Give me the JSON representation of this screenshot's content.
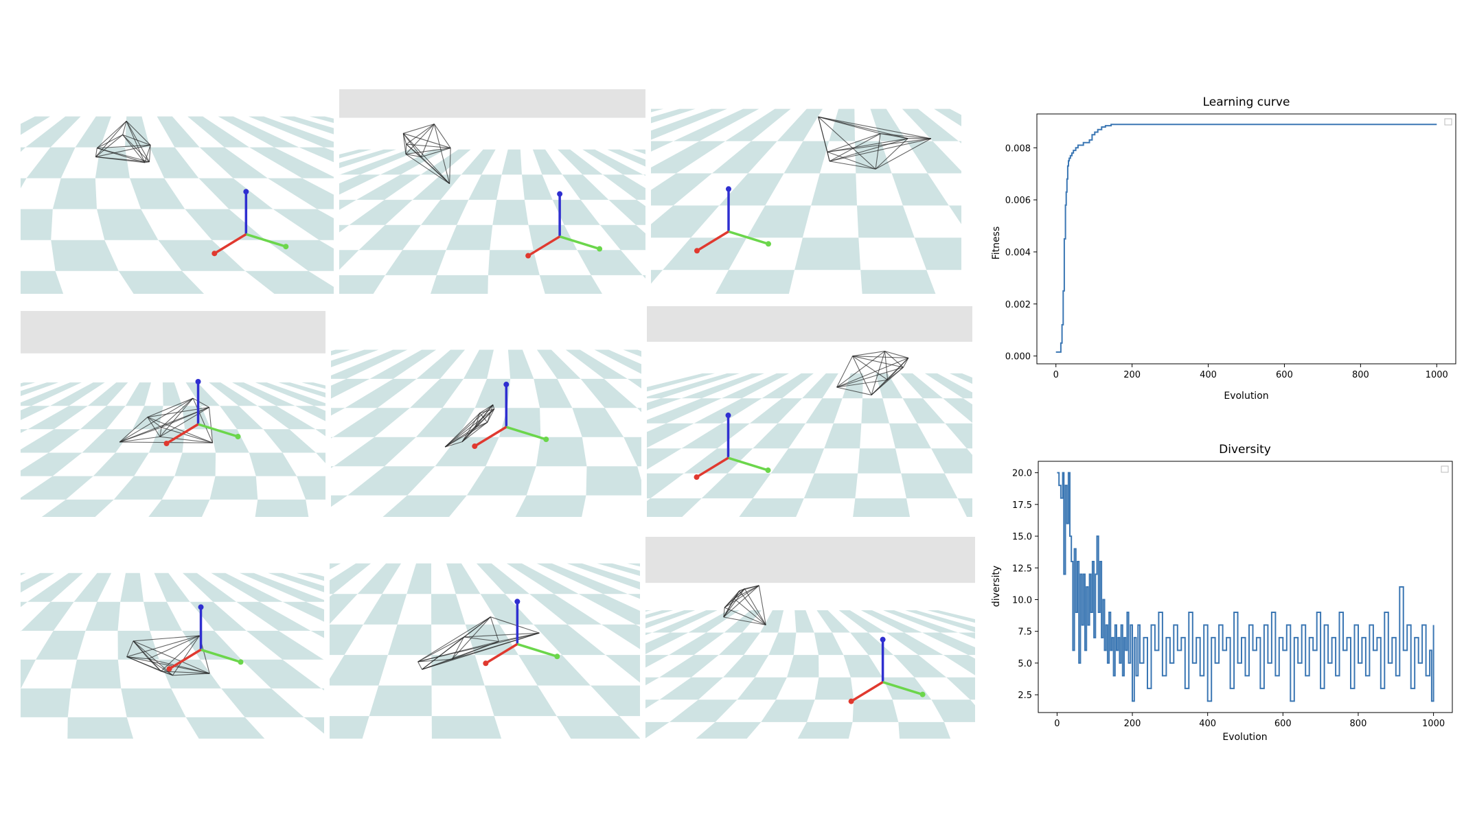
{
  "colors": {
    "tile": "#cfe3e3",
    "sky": "#e3e3e3",
    "x_axis": "#e0392f",
    "y_axis": "#6bd64b",
    "z_axis": "#2f2fd0",
    "edge": "#222222",
    "line": "#3a76b3"
  },
  "scenes": [
    {
      "id": "scene-1",
      "sky": false,
      "robot": "left"
    },
    {
      "id": "scene-2",
      "sky": true,
      "robot": "left"
    },
    {
      "id": "scene-3",
      "sky": false,
      "robot": "right"
    },
    {
      "id": "scene-4",
      "sky": true,
      "robot": "center"
    },
    {
      "id": "scene-5",
      "sky": false,
      "robot": "center"
    },
    {
      "id": "scene-6",
      "sky": true,
      "robot": "right"
    },
    {
      "id": "scene-7",
      "sky": false,
      "robot": "center"
    },
    {
      "id": "scene-8",
      "sky": false,
      "robot": "center"
    },
    {
      "id": "scene-9",
      "sky": true,
      "robot": "left"
    }
  ],
  "chart_data": [
    {
      "type": "line",
      "title": "Learning curve",
      "xlabel": "Evolution",
      "ylabel": "Fitness",
      "xlim": [
        -50,
        1050
      ],
      "ylim": [
        -0.0003,
        0.0093
      ],
      "xticks": [
        0,
        200,
        400,
        600,
        800,
        1000
      ],
      "yticks": [
        0.0,
        0.002,
        0.004,
        0.006,
        0.008
      ],
      "ytick_labels": [
        "0.000",
        "0.002",
        "0.004",
        "0.006",
        "0.008"
      ],
      "legend": "top-right (empty)",
      "series": [
        {
          "step": true,
          "x": [
            0,
            10,
            13,
            16,
            19,
            22,
            25,
            27,
            29,
            31,
            33,
            35,
            38,
            42,
            46,
            52,
            58,
            64,
            72,
            80,
            88,
            95,
            102,
            110,
            120,
            130,
            145,
            160,
            200,
            400,
            600,
            800,
            1000
          ],
          "y": [
            0.00015,
            0.00015,
            0.0005,
            0.0012,
            0.0025,
            0.0045,
            0.0058,
            0.0063,
            0.0068,
            0.0073,
            0.0075,
            0.0076,
            0.0077,
            0.0078,
            0.0079,
            0.008,
            0.0081,
            0.0081,
            0.0082,
            0.0082,
            0.0083,
            0.0085,
            0.0086,
            0.0087,
            0.0088,
            0.00885,
            0.0089,
            0.0089,
            0.0089,
            0.0089,
            0.0089,
            0.0089,
            0.0089
          ]
        }
      ]
    },
    {
      "type": "line",
      "title": "Diversity",
      "xlabel": "Evolution",
      "ylabel": "diversity",
      "xlim": [
        -50,
        1050
      ],
      "ylim": [
        1.1,
        20.9
      ],
      "xticks": [
        0,
        200,
        400,
        600,
        800,
        1000
      ],
      "yticks": [
        2.5,
        5.0,
        7.5,
        10.0,
        12.5,
        15.0,
        17.5,
        20.0
      ],
      "ytick_labels": [
        "2.5",
        "5.0",
        "7.5",
        "10.0",
        "12.5",
        "15.0",
        "17.5",
        "20.0"
      ],
      "legend": "top-right (empty)",
      "series": [
        {
          "step": true,
          "x": [
            0,
            5,
            10,
            15,
            18,
            22,
            26,
            30,
            34,
            38,
            42,
            46,
            50,
            54,
            58,
            62,
            66,
            70,
            74,
            78,
            82,
            86,
            90,
            94,
            98,
            102,
            106,
            110,
            114,
            118,
            122,
            126,
            130,
            134,
            138,
            142,
            146,
            150,
            154,
            158,
            162,
            166,
            170,
            174,
            178,
            182,
            186,
            190,
            195,
            200,
            205,
            210,
            215,
            220,
            230,
            240,
            250,
            260,
            270,
            280,
            290,
            300,
            310,
            320,
            330,
            340,
            350,
            360,
            370,
            380,
            390,
            400,
            410,
            420,
            430,
            440,
            450,
            460,
            470,
            480,
            490,
            500,
            510,
            520,
            530,
            540,
            550,
            560,
            570,
            580,
            590,
            600,
            610,
            620,
            630,
            640,
            650,
            660,
            670,
            680,
            690,
            700,
            710,
            720,
            730,
            740,
            750,
            760,
            770,
            780,
            790,
            800,
            810,
            820,
            830,
            840,
            850,
            860,
            870,
            880,
            890,
            900,
            910,
            920,
            930,
            940,
            950,
            960,
            970,
            980,
            990,
            995,
            1000
          ],
          "y": [
            20,
            19,
            18,
            20,
            12,
            19,
            16,
            20,
            15,
            13,
            6,
            14,
            9,
            13,
            5,
            12,
            8,
            12,
            6,
            11,
            8,
            12,
            9,
            13,
            7,
            12,
            15,
            9,
            13,
            7,
            10,
            6,
            8,
            5,
            9,
            6,
            7,
            4,
            8,
            6,
            7,
            5,
            8,
            4,
            7,
            6,
            9,
            5,
            8,
            2,
            7,
            4,
            8,
            5,
            7,
            3,
            8,
            6,
            9,
            4,
            7,
            5,
            8,
            6,
            7,
            3,
            9,
            5,
            7,
            4,
            8,
            2,
            7,
            5,
            8,
            6,
            7,
            3,
            9,
            5,
            7,
            4,
            8,
            6,
            7,
            3,
            8,
            5,
            9,
            4,
            7,
            6,
            8,
            2,
            7,
            5,
            8,
            4,
            7,
            6,
            9,
            3,
            8,
            5,
            7,
            4,
            9,
            6,
            7,
            3,
            8,
            5,
            7,
            4,
            8,
            6,
            7,
            3,
            9,
            5,
            7,
            4,
            11,
            6,
            8,
            3,
            7,
            5,
            8,
            4,
            6,
            2,
            8
          ]
        }
      ]
    }
  ]
}
